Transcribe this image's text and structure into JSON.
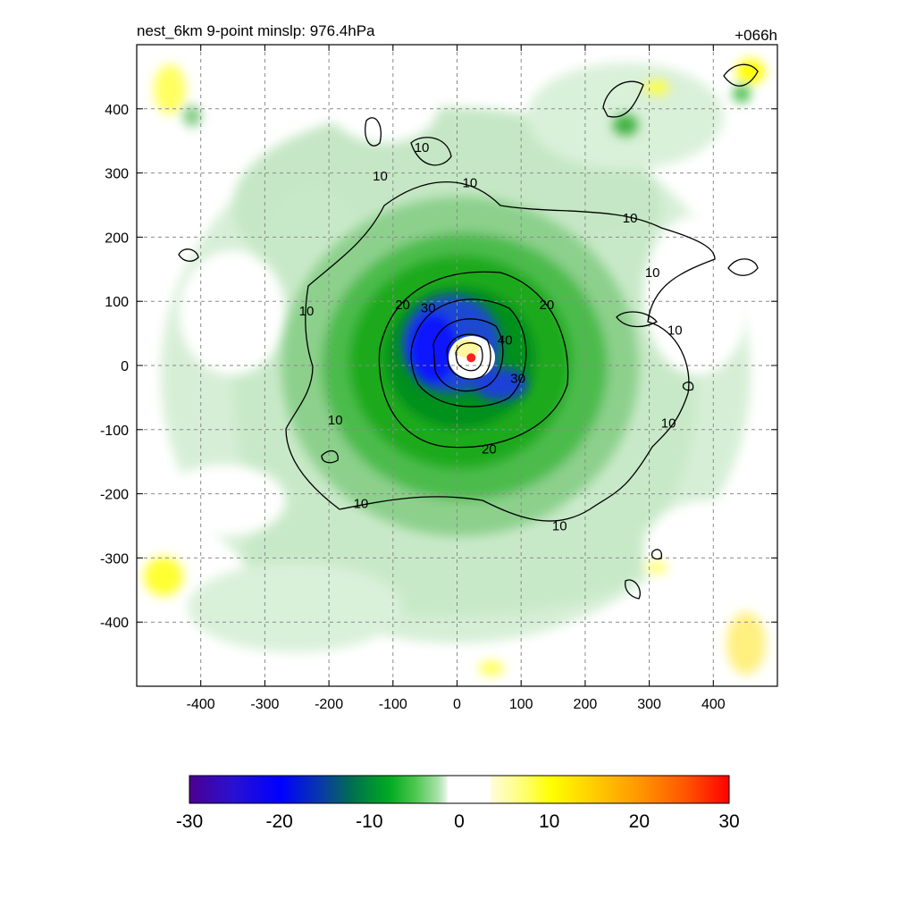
{
  "title_left": "nest_6km  9-point minslp: 976.4hPa",
  "title_right": "+066h",
  "chart_data": {
    "type": "heatmap",
    "x_range": [
      -500,
      500
    ],
    "y_range": [
      -500,
      500
    ],
    "x_ticks": [
      -400,
      -300,
      -200,
      -100,
      0,
      100,
      200,
      300,
      400
    ],
    "y_ticks": [
      -400,
      -300,
      -200,
      -100,
      0,
      100,
      200,
      300,
      400
    ],
    "x_tick_labels": [
      "-400",
      "-300",
      "-200",
      "-100",
      "0",
      "100",
      "200",
      "300",
      "400"
    ],
    "y_tick_labels": [
      "-400",
      "-300",
      "-200",
      "-100",
      "0",
      "100",
      "200",
      "300",
      "400"
    ],
    "grid": true,
    "colorbar": {
      "range": [
        -30,
        30
      ],
      "ticks": [
        -30,
        -20,
        -10,
        0,
        10,
        20,
        30
      ],
      "tick_labels": [
        "-30",
        "-20",
        "-10",
        "0",
        "10",
        "20",
        "30"
      ],
      "placement": "bottom"
    },
    "center_marker": {
      "x": 22,
      "y": 12,
      "color": "#ff2020"
    },
    "contour_labels": [
      {
        "text": "10",
        "x": -120,
        "y": 295
      },
      {
        "text": "10",
        "x": -55,
        "y": 340
      },
      {
        "text": "10",
        "x": 20,
        "y": 285
      },
      {
        "text": "10",
        "x": 270,
        "y": 230
      },
      {
        "text": "10",
        "x": 305,
        "y": 145
      },
      {
        "text": "10",
        "x": -235,
        "y": 85
      },
      {
        "text": "10",
        "x": 340,
        "y": 55
      },
      {
        "text": "10",
        "x": 330,
        "y": -90
      },
      {
        "text": "10",
        "x": -190,
        "y": -85
      },
      {
        "text": "10",
        "x": -150,
        "y": -215
      },
      {
        "text": "10",
        "x": 160,
        "y": -250
      },
      {
        "text": "20",
        "x": -85,
        "y": 95
      },
      {
        "text": "20",
        "x": 140,
        "y": 95
      },
      {
        "text": "20",
        "x": 50,
        "y": -130
      },
      {
        "text": "30",
        "x": -45,
        "y": 90
      },
      {
        "text": "30",
        "x": 95,
        "y": -20
      },
      {
        "text": "40",
        "x": 75,
        "y": 40
      }
    ]
  }
}
